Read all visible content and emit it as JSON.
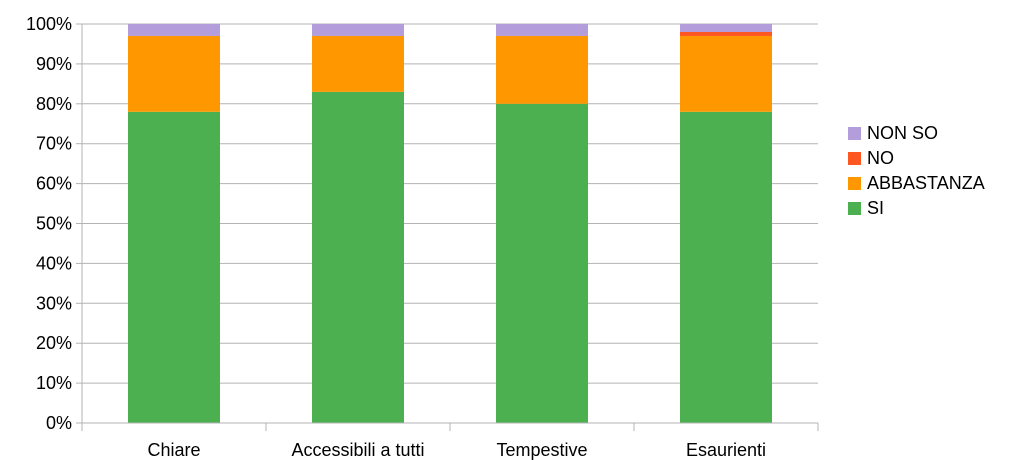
{
  "chart_data": {
    "type": "bar",
    "stacked": true,
    "percent": true,
    "categories": [
      "Chiare",
      "Accessibili a tutti",
      "Tempestive",
      "Esaurienti"
    ],
    "series": [
      {
        "name": "SI",
        "color": "#4caf50",
        "values": [
          78,
          83,
          80,
          78
        ]
      },
      {
        "name": "ABBASTANZA",
        "color": "#ff9800",
        "values": [
          19,
          14,
          17,
          19
        ]
      },
      {
        "name": "NO",
        "color": "#ff5722",
        "values": [
          0,
          0,
          0,
          1
        ]
      },
      {
        "name": "NON SO",
        "color": "#b39ddb",
        "values": [
          3,
          3,
          3,
          2
        ]
      }
    ],
    "ylim": [
      0,
      100
    ],
    "yticks": [
      "0%",
      "10%",
      "20%",
      "30%",
      "40%",
      "50%",
      "60%",
      "70%",
      "80%",
      "90%",
      "100%"
    ],
    "legend_position": "right",
    "grid": true
  }
}
